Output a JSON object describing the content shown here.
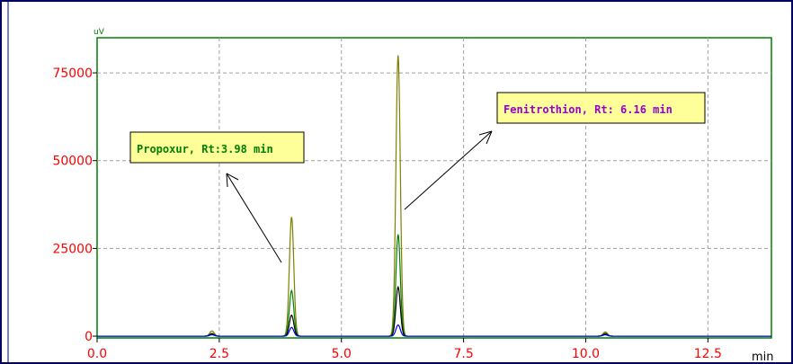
{
  "chart_data": {
    "type": "line",
    "xlabel": "min",
    "ylabel": "uV",
    "xlim": [
      0,
      13.8
    ],
    "ylim": [
      -500,
      85000
    ],
    "x_ticks": [
      "0.0",
      "2.5",
      "5.0",
      "7.5",
      "10.0",
      "12.5"
    ],
    "y_ticks": [
      "0",
      "25000",
      "50000",
      "75000"
    ],
    "grid": true,
    "peaks": [
      {
        "rt": 2.35,
        "heights": [
          1500,
          800,
          600,
          400
        ]
      },
      {
        "rt": 3.98,
        "heights": [
          34000,
          13000,
          6000,
          2500
        ]
      },
      {
        "rt": 6.16,
        "heights": [
          80000,
          29000,
          14000,
          3200
        ]
      },
      {
        "rt": 10.4,
        "heights": [
          1200,
          800,
          600,
          400
        ]
      }
    ],
    "series": [
      {
        "color": "#808000",
        "scale_index": 0
      },
      {
        "color": "#008000",
        "scale_index": 1
      },
      {
        "color": "#000000",
        "scale_index": 2
      },
      {
        "color": "#0000ff",
        "scale_index": 3
      }
    ],
    "annotations": [
      {
        "text": "Propoxur, Rt:3.98 min",
        "peak_rt": 3.98,
        "color": "#008000"
      },
      {
        "text": "Fenitrothion, Rt: 6.16 min",
        "peak_rt": 6.16,
        "color": "#9900cc"
      }
    ]
  }
}
